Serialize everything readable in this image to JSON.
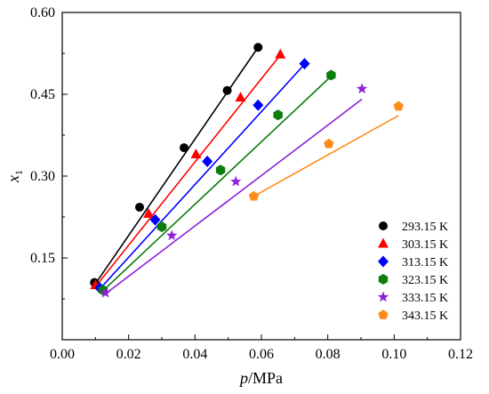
{
  "chart_data": {
    "type": "scatter",
    "xlabel": {
      "var": "p",
      "unit": "/MPa"
    },
    "ylabel": {
      "var": "x",
      "sub": "1"
    },
    "xlim": [
      0.0,
      0.12
    ],
    "ylim": [
      0.0,
      0.6
    ],
    "xticks": [
      "0.00",
      "0.02",
      "0.04",
      "0.06",
      "0.08",
      "0.10",
      "0.12"
    ],
    "yticks": [
      "0.15",
      "0.30",
      "0.45",
      "0.60"
    ],
    "legend_position": "bottom-right",
    "series": [
      {
        "name": "293.15 K",
        "color": "#000000",
        "marker": "circle",
        "x": [
          0.0097,
          0.0233,
          0.0367,
          0.0497,
          0.059
        ],
        "y": [
          0.105,
          0.243,
          0.352,
          0.457,
          0.536
        ],
        "fit_x": [
          0.0097,
          0.059
        ],
        "fit_y": [
          0.1,
          0.536
        ]
      },
      {
        "name": "303.15 K",
        "color": "#ff0000",
        "marker": "triangle",
        "x": [
          0.01,
          0.026,
          0.0403,
          0.0537,
          0.0657
        ],
        "y": [
          0.1,
          0.231,
          0.34,
          0.444,
          0.523
        ],
        "fit_x": [
          0.01,
          0.0657
        ],
        "fit_y": [
          0.097,
          0.522
        ]
      },
      {
        "name": "313.15 K",
        "color": "#0000ff",
        "marker": "diamond",
        "x": [
          0.0113,
          0.028,
          0.0437,
          0.059,
          0.073
        ],
        "y": [
          0.095,
          0.22,
          0.327,
          0.43,
          0.506
        ],
        "fit_x": [
          0.0113,
          0.073
        ],
        "fit_y": [
          0.093,
          0.505
        ]
      },
      {
        "name": "323.15 K",
        "color": "#0a7d0a",
        "marker": "hexagon",
        "x": [
          0.0123,
          0.03,
          0.0477,
          0.065,
          0.081
        ],
        "y": [
          0.091,
          0.207,
          0.311,
          0.412,
          0.485
        ],
        "fit_x": [
          0.0123,
          0.081
        ],
        "fit_y": [
          0.09,
          0.483
        ]
      },
      {
        "name": "333.15 K",
        "color": "#8f1fd9",
        "marker": "star",
        "x": [
          0.013,
          0.033,
          0.0523,
          0.0903
        ],
        "y": [
          0.086,
          0.191,
          0.29,
          0.46
        ],
        "fit_x": [
          0.013,
          0.0903
        ],
        "fit_y": [
          0.084,
          0.441
        ]
      },
      {
        "name": "343.15 K",
        "color": "#ff8c1a",
        "marker": "pentagon",
        "x": [
          0.0577,
          0.0803,
          0.1013
        ],
        "y": [
          0.263,
          0.359,
          0.428
        ],
        "fit_x": [
          0.0577,
          0.1013
        ],
        "fit_y": [
          0.263,
          0.411
        ]
      }
    ]
  }
}
